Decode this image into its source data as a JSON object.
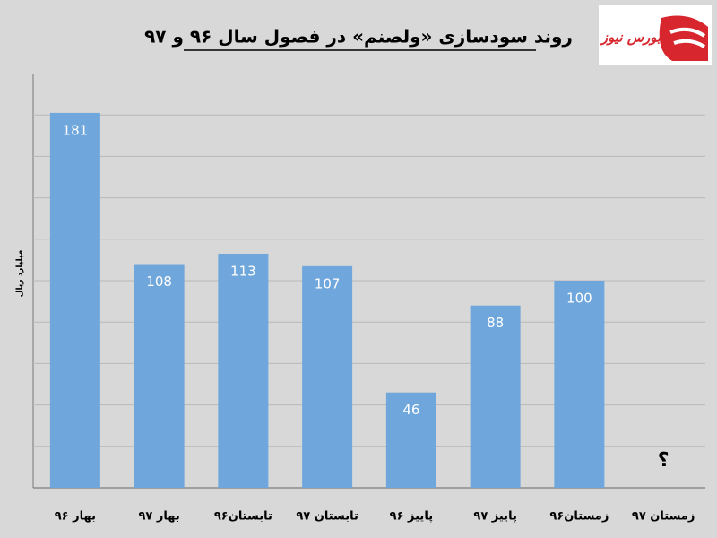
{
  "chart_data": {
    "type": "bar",
    "title": "روند سودسازی «ولصنم» در فصول سال ۹۶ و ۹۷",
    "y_label": "میلیارد ریال",
    "logo": "بورس نیوز",
    "annotation": "؟",
    "categories": [
      "بهار ۹۶",
      "بهار ۹۷",
      "تابستان۹۶",
      "تابستان ۹۷",
      "پاییز ۹۶",
      "پاییز ۹۷",
      "زمستان۹۶",
      "زمستان ۹۷"
    ],
    "values": [
      181,
      108,
      113,
      107,
      46,
      88,
      100,
      null
    ],
    "color": "#6fa6db",
    "ylim": [
      0,
      200
    ],
    "yticks": [
      0,
      20,
      40,
      60,
      80,
      100,
      120,
      140,
      160,
      180
    ],
    "grid": true
  }
}
